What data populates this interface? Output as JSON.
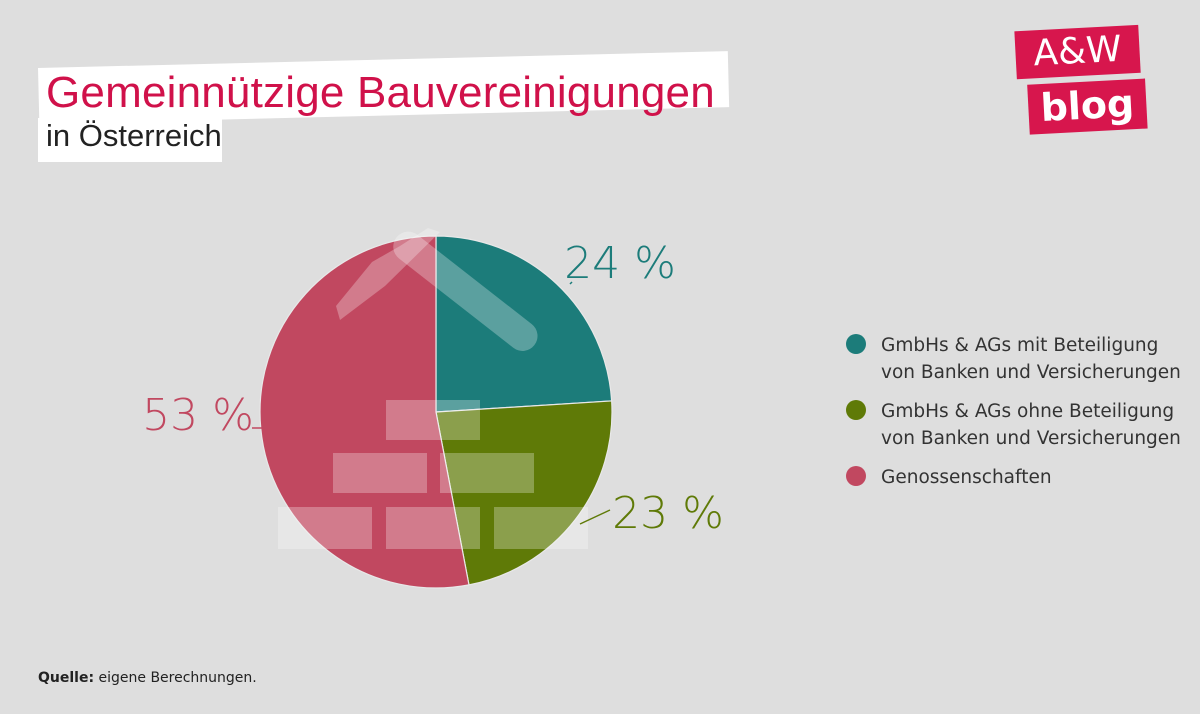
{
  "header": {
    "title": "Gemeinnützige Bauvereinigungen",
    "subtitle": "in Österreich"
  },
  "logo": {
    "line1": "A&W",
    "line2": "blog"
  },
  "source": {
    "label": "Quelle:",
    "text": " eigene Berechnungen."
  },
  "chart_data": {
    "type": "pie",
    "title": "Gemeinnützige Bauvereinigungen",
    "subtitle": "in Österreich",
    "legend_position": "right",
    "start_angle_deg": 0,
    "direction": "clockwise",
    "slices": [
      {
        "label": "GmbHs & AGs mit Beteiligung von Banken und Versicherungen",
        "value": 24,
        "display": "24 %",
        "color": "#1c7c7a"
      },
      {
        "label": "GmbHs & AGs ohne Beteiligung von Banken und Versicherungen",
        "value": 23,
        "display": "23 %",
        "color": "#5f7a07"
      },
      {
        "label": "Genossenschaften",
        "value": 53,
        "display": "53 %",
        "color": "#c14860"
      }
    ]
  },
  "legend": {
    "items": [
      {
        "label": "GmbHs & AGs mit Beteiligung\nvon Banken und Versicherungen",
        "color": "#1c7c7a"
      },
      {
        "label": "GmbHs & AGs ohne Beteiligung\nvon Banken und Versicherungen",
        "color": "#5f7a07"
      },
      {
        "label": "Genossenschaften",
        "color": "#c14860"
      }
    ]
  }
}
